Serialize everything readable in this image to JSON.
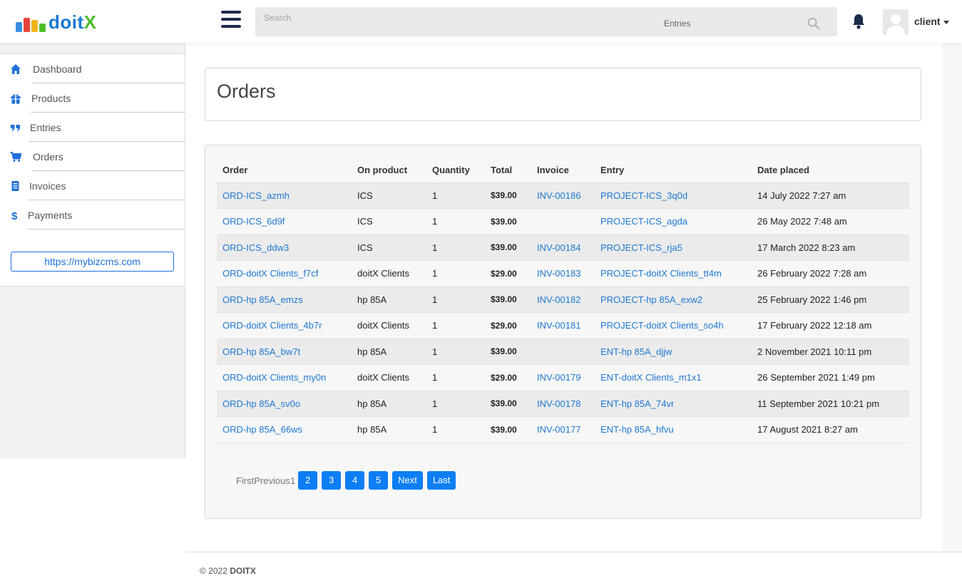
{
  "brand": {
    "logo_text_main": "doit",
    "logo_text_accent": "X",
    "bar_colors": [
      "#3a8fe0",
      "#e8443a",
      "#f3b31b",
      "#4cbf2b"
    ]
  },
  "header": {
    "search_placeholder": "Search",
    "search_scope": "Entries",
    "user_name": "client"
  },
  "sidebar": {
    "items": [
      {
        "label": "Dashboard",
        "icon": "home-icon"
      },
      {
        "label": "Products",
        "icon": "gift-icon"
      },
      {
        "label": "Entries",
        "icon": "quote-icon"
      },
      {
        "label": "Orders",
        "icon": "cart-icon"
      },
      {
        "label": "Invoices",
        "icon": "invoice-icon"
      },
      {
        "label": "Payments",
        "icon": "dollar-icon"
      }
    ],
    "site_link": "https://mybizcms.com"
  },
  "page": {
    "title": "Orders"
  },
  "table": {
    "headers": [
      "Order",
      "On product",
      "Quantity",
      "Total",
      "Invoice",
      "Entry",
      "Date placed"
    ],
    "rows": [
      {
        "order": "ORD-ICS_azmh",
        "product": "ICS",
        "quantity": "1",
        "total": "$39.00",
        "invoice": "INV-00186",
        "entry": "PROJECT-ICS_3q0d",
        "date": "14 July 2022 7:27 am"
      },
      {
        "order": "ORD-ICS_6d9f",
        "product": "ICS",
        "quantity": "1",
        "total": "$39.00",
        "invoice": "",
        "entry": "PROJECT-ICS_agda",
        "date": "26 May 2022 7:48 am"
      },
      {
        "order": "ORD-ICS_ddw3",
        "product": "ICS",
        "quantity": "1",
        "total": "$39.00",
        "invoice": "INV-00184",
        "entry": "PROJECT-ICS_rja5",
        "date": "17 March 2022 8:23 am"
      },
      {
        "order": "ORD-doitX Clients_f7cf",
        "product": "doitX Clients",
        "quantity": "1",
        "total": "$29.00",
        "invoice": "INV-00183",
        "entry": "PROJECT-doitX Clients_tt4m",
        "date": "26 February 2022 7:28 am"
      },
      {
        "order": "ORD-hp 85A_emzs",
        "product": "hp 85A",
        "quantity": "1",
        "total": "$39.00",
        "invoice": "INV-00182",
        "entry": "PROJECT-hp 85A_exw2",
        "date": "25 February 2022 1:46 pm"
      },
      {
        "order": "ORD-doitX Clients_4b7r",
        "product": "doitX Clients",
        "quantity": "1",
        "total": "$29.00",
        "invoice": "INV-00181",
        "entry": "PROJECT-doitX Clients_so4h",
        "date": "17 February 2022 12:18 am"
      },
      {
        "order": "ORD-hp 85A_bw7t",
        "product": "hp 85A",
        "quantity": "1",
        "total": "$39.00",
        "invoice": "",
        "entry": "ENT-hp 85A_djjw",
        "date": "2 November 2021 10:11 pm"
      },
      {
        "order": "ORD-doitX Clients_my0n",
        "product": "doitX Clients",
        "quantity": "1",
        "total": "$29.00",
        "invoice": "INV-00179",
        "entry": "ENT-doitX Clients_m1x1",
        "date": "26 September 2021 1:49 pm"
      },
      {
        "order": "ORD-hp 85A_sv0o",
        "product": "hp 85A",
        "quantity": "1",
        "total": "$39.00",
        "invoice": "INV-00178",
        "entry": "ENT-hp 85A_74vr",
        "date": "11 September 2021 10:21 pm"
      },
      {
        "order": "ORD-hp 85A_66ws",
        "product": "hp 85A",
        "quantity": "1",
        "total": "$39.00",
        "invoice": "INV-00177",
        "entry": "ENT-hp 85A_hfvu",
        "date": "17 August 2021 8:27 am"
      }
    ]
  },
  "pagination": {
    "first": "First",
    "previous": "Previous",
    "current": "1",
    "pages": [
      "2",
      "3",
      "4",
      "5"
    ],
    "next": "Next",
    "last": "Last"
  },
  "footer": {
    "copyright": "© 2022",
    "brand": "DOITX"
  },
  "colors": {
    "accent": "#1f78d1",
    "button": "#0d7ef5"
  }
}
